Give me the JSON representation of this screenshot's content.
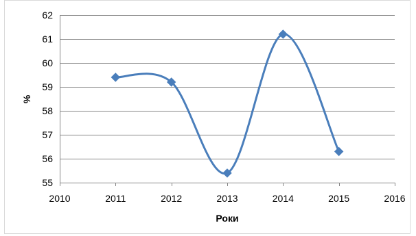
{
  "chart_data": {
    "type": "line",
    "title": "",
    "xlabel": "Роки",
    "ylabel": "%",
    "xlim": [
      2010,
      2016
    ],
    "ylim": [
      55,
      62
    ],
    "xticks": [
      2010,
      2011,
      2012,
      2013,
      2014,
      2015,
      2016
    ],
    "yticks": [
      55,
      56,
      57,
      58,
      59,
      60,
      61,
      62
    ],
    "grid": true,
    "smooth": true,
    "marker": "diamond",
    "legend": "none",
    "colors": {
      "series": "#4a7ebb",
      "grid": "#868686",
      "frame": "#d9d9d9"
    },
    "series": [
      {
        "x": [
          2011,
          2012,
          2013,
          2014,
          2015
        ],
        "values": [
          59.4,
          59.2,
          55.4,
          61.2,
          56.3
        ]
      }
    ]
  }
}
